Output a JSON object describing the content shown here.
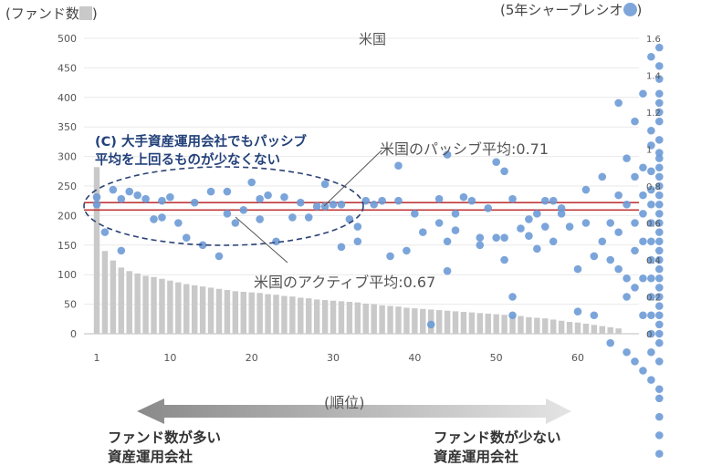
{
  "legend": {
    "left": "(ファンド数",
    "left_close": ")",
    "right": "(5年シャープレシオ",
    "right_close": ")"
  },
  "annotations": {
    "c_line1": "(C) 大手資産運用会社でもパッシブ",
    "c_line2": "平均を上回るものが少なくない",
    "passive": "米国のパッシブ平均:0.71",
    "active": "米国のアクティブ平均:0.67",
    "xlabel": "(順位)",
    "bottom_left_1": "ファンド数が多い",
    "bottom_left_2": "資産運用会社",
    "bottom_right_1": "ファンド数が少ない",
    "bottom_right_2": "資産運用会社"
  },
  "colors": {
    "bar": "#c9c9c9",
    "dot": "#6d9bd6",
    "ref_line": "#c0393b",
    "ellipse": "#2b4275",
    "arrow_dark": "#8a8a8a",
    "arrow_light": "#e4e4e4"
  },
  "chart_data": {
    "type": "bar+scatter",
    "title": "米国",
    "xlabel": "(順位)",
    "x_ticks": [
      1,
      10,
      20,
      30,
      40,
      50,
      60
    ],
    "y_left": {
      "range": [
        0,
        500
      ],
      "ticks": [
        0,
        50,
        100,
        150,
        200,
        250,
        300,
        350,
        400,
        450,
        500
      ]
    },
    "y_right": {
      "range": [
        0,
        1.6
      ],
      "ticks": [
        "0",
        "0.2",
        "0.4",
        "0.6",
        "0.8",
        "1",
        "1.2",
        "1.4",
        "1.6"
      ]
    },
    "bars_fund_count": [
      282,
      140,
      124,
      112,
      106,
      102,
      98,
      96,
      93,
      90,
      87,
      84,
      82,
      80,
      78,
      76,
      74,
      72,
      71,
      70,
      69,
      67,
      66,
      64,
      63,
      61,
      60,
      58,
      57,
      56,
      55,
      54,
      53,
      51,
      50,
      48,
      47,
      46,
      44,
      43,
      42,
      41,
      40,
      39,
      38,
      37,
      36,
      35,
      34,
      33,
      32,
      31,
      30,
      28,
      27,
      26,
      24,
      22,
      20,
      19,
      17,
      15,
      13,
      11,
      9
    ],
    "reference_lines": [
      {
        "label": "米国のパッシブ平均",
        "value": 0.71
      },
      {
        "label": "米国のアクティブ平均",
        "value": 0.67
      }
    ],
    "sharpe_points": [
      [
        1,
        0.74
      ],
      [
        1,
        0.7
      ],
      [
        2,
        0.55
      ],
      [
        3,
        0.78
      ],
      [
        4,
        0.73
      ],
      [
        4,
        0.45
      ],
      [
        5,
        0.77
      ],
      [
        6,
        0.75
      ],
      [
        7,
        0.73
      ],
      [
        8,
        0.62
      ],
      [
        9,
        0.63
      ],
      [
        9,
        0.72
      ],
      [
        10,
        0.74
      ],
      [
        11,
        0.6
      ],
      [
        12,
        0.52
      ],
      [
        13,
        0.71
      ],
      [
        14,
        0.48
      ],
      [
        15,
        0.77
      ],
      [
        16,
        0.42
      ],
      [
        17,
        0.65
      ],
      [
        17,
        0.77
      ],
      [
        18,
        0.6
      ],
      [
        19,
        0.67
      ],
      [
        20,
        0.82
      ],
      [
        21,
        0.62
      ],
      [
        21,
        0.73
      ],
      [
        22,
        0.75
      ],
      [
        23,
        0.5
      ],
      [
        24,
        0.74
      ],
      [
        25,
        0.63
      ],
      [
        26,
        0.71
      ],
      [
        27,
        0.63
      ],
      [
        28,
        0.69
      ],
      [
        29,
        0.81
      ],
      [
        29,
        0.69
      ],
      [
        30,
        0.7
      ],
      [
        31,
        0.47
      ],
      [
        31,
        0.7
      ],
      [
        32,
        0.62
      ],
      [
        33,
        0.5
      ],
      [
        33,
        0.58
      ],
      [
        34,
        0.72
      ],
      [
        35,
        0.7
      ],
      [
        36,
        0.72
      ],
      [
        37,
        0.42
      ],
      [
        38,
        0.91
      ],
      [
        38,
        0.72
      ],
      [
        39,
        0.45
      ],
      [
        40,
        0.65
      ],
      [
        41,
        0.55
      ],
      [
        42,
        0.05
      ],
      [
        43,
        0.6
      ],
      [
        43,
        0.73
      ],
      [
        44,
        0.34
      ],
      [
        44,
        0.5
      ],
      [
        44,
        0.97
      ],
      [
        45,
        0.65
      ],
      [
        45,
        0.56
      ],
      [
        46,
        0.74
      ],
      [
        47,
        0.72
      ],
      [
        48,
        0.48
      ],
      [
        48,
        0.52
      ],
      [
        49,
        0.68
      ],
      [
        50,
        0.52
      ],
      [
        50,
        0.93
      ],
      [
        51,
        0.52
      ],
      [
        51,
        0.88
      ],
      [
        51,
        0.4
      ],
      [
        52,
        0.2
      ],
      [
        52,
        0.1
      ],
      [
        52,
        0.73
      ],
      [
        53,
        0.57
      ],
      [
        54,
        0.62
      ],
      [
        54,
        0.53
      ],
      [
        55,
        0.65
      ],
      [
        55,
        0.46
      ],
      [
        56,
        0.58
      ],
      [
        56,
        0.72
      ],
      [
        57,
        0.72
      ],
      [
        57,
        0.5
      ],
      [
        58,
        0.68
      ],
      [
        58,
        0.65
      ],
      [
        59,
        0.58
      ],
      [
        60,
        0.35
      ],
      [
        60,
        0.12
      ],
      [
        61,
        0.6
      ],
      [
        61,
        0.78
      ],
      [
        62,
        0.42
      ],
      [
        62,
        0.1
      ],
      [
        63,
        0.5
      ],
      [
        63,
        0.85
      ],
      [
        64,
        0.6
      ],
      [
        64,
        0.4
      ],
      [
        64,
        -0.05
      ],
      [
        65,
        1.25
      ],
      [
        65,
        0.75
      ],
      [
        65,
        0.55
      ],
      [
        65,
        0.35
      ],
      [
        66,
        0.95
      ],
      [
        66,
        0.7
      ],
      [
        66,
        0.3
      ],
      [
        66,
        0.2
      ],
      [
        66,
        -0.1
      ],
      [
        67,
        1.15
      ],
      [
        67,
        0.85
      ],
      [
        67,
        0.6
      ],
      [
        67,
        0.45
      ],
      [
        67,
        0.25
      ],
      [
        67,
        -0.15
      ],
      [
        68,
        1.3
      ],
      [
        68,
        0.9
      ],
      [
        68,
        0.75
      ],
      [
        68,
        0.65
      ],
      [
        68,
        0.5
      ],
      [
        68,
        0.3
      ],
      [
        68,
        0.1
      ],
      [
        68,
        -0.2
      ],
      [
        69,
        1.5
      ],
      [
        69,
        1.1
      ],
      [
        69,
        1.02
      ],
      [
        69,
        0.88
      ],
      [
        69,
        0.78
      ],
      [
        69,
        0.7
      ],
      [
        69,
        0.6
      ],
      [
        69,
        0.5
      ],
      [
        69,
        0.4
      ],
      [
        69,
        0.3
      ],
      [
        69,
        0.2
      ],
      [
        69,
        0.1
      ],
      [
        69,
        0.0
      ],
      [
        69,
        -0.1
      ],
      [
        69,
        -0.25
      ],
      [
        70,
        1.55
      ],
      [
        70,
        1.45
      ],
      [
        70,
        1.3
      ],
      [
        70,
        1.25
      ],
      [
        70,
        1.15
      ],
      [
        70,
        1.05
      ],
      [
        70,
        0.98
      ],
      [
        70,
        0.9
      ],
      [
        70,
        0.85
      ],
      [
        70,
        0.8
      ],
      [
        70,
        0.75
      ],
      [
        70,
        0.7
      ],
      [
        70,
        0.65
      ],
      [
        70,
        0.6
      ],
      [
        70,
        0.55
      ],
      [
        70,
        0.5
      ],
      [
        70,
        0.45
      ],
      [
        70,
        0.4
      ],
      [
        70,
        0.35
      ],
      [
        70,
        0.3
      ],
      [
        70,
        0.25
      ],
      [
        70,
        0.2
      ],
      [
        70,
        0.15
      ],
      [
        70,
        0.1
      ],
      [
        70,
        0.05
      ],
      [
        70,
        0.0
      ],
      [
        70,
        -0.05
      ],
      [
        70,
        -0.15
      ],
      [
        70,
        -0.3
      ],
      [
        70,
        -0.45
      ],
      [
        70,
        -0.55
      ],
      [
        70,
        -0.65
      ],
      [
        70,
        -0.8
      ],
      [
        70,
        -1.0
      ],
      [
        70,
        -0.35
      ],
      [
        70,
        0.95
      ],
      [
        70,
        1.2
      ],
      [
        70,
        1.38
      ]
    ]
  }
}
